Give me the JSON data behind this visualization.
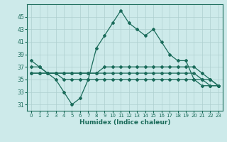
{
  "x": [
    0,
    1,
    2,
    3,
    4,
    5,
    6,
    7,
    8,
    9,
    10,
    11,
    12,
    13,
    14,
    15,
    16,
    17,
    18,
    19,
    20,
    21,
    22,
    23
  ],
  "line1": [
    38,
    37,
    36,
    35,
    33,
    31,
    32,
    35,
    40,
    42,
    44,
    46,
    44,
    43,
    42,
    43,
    41,
    39,
    38,
    38,
    35,
    35,
    34,
    34
  ],
  "line2": [
    37,
    37,
    36,
    36,
    36,
    36,
    36,
    36,
    36,
    37,
    37,
    37,
    37,
    37,
    37,
    37,
    37,
    37,
    37,
    37,
    37,
    36,
    35,
    34
  ],
  "line3": [
    36,
    36,
    36,
    36,
    36,
    36,
    36,
    36,
    36,
    36,
    36,
    36,
    36,
    36,
    36,
    36,
    36,
    36,
    36,
    36,
    36,
    35,
    35,
    34
  ],
  "line4": [
    36,
    36,
    36,
    36,
    35,
    35,
    35,
    35,
    35,
    35,
    35,
    35,
    35,
    35,
    35,
    35,
    35,
    35,
    35,
    35,
    35,
    34,
    34,
    34
  ],
  "color_main": "#1a6b5a",
  "bg_color": "#cdeaea",
  "grid_color": "#aecfcf",
  "xlabel": "Humidex (Indice chaleur)",
  "ylim": [
    30,
    47
  ],
  "yticks": [
    31,
    33,
    35,
    37,
    39,
    41,
    43,
    45
  ],
  "xlim": [
    -0.5,
    23.5
  ]
}
